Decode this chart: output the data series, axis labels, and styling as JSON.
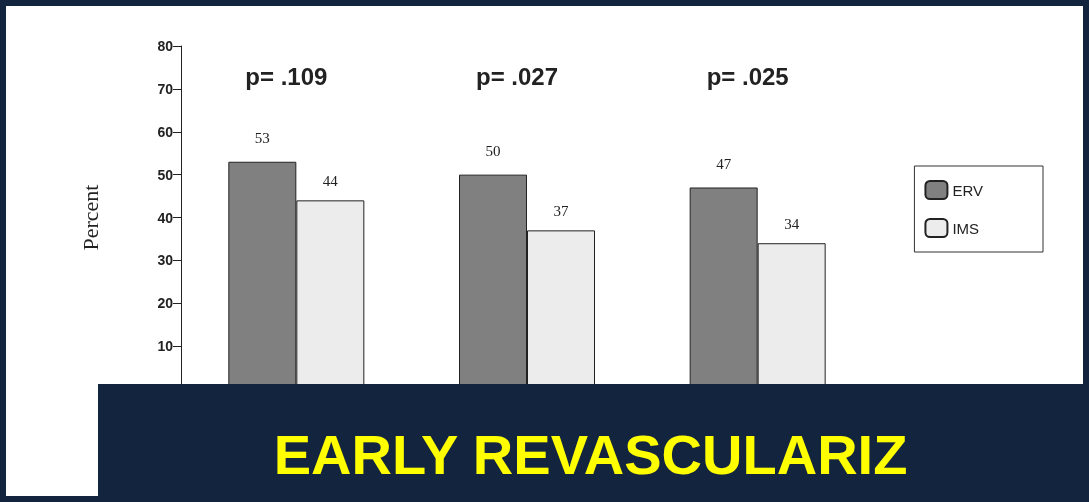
{
  "chart_data": {
    "type": "bar",
    "title": "EARLY REVASCULARIZ",
    "ylabel": "Percent",
    "categories": [
      null,
      null,
      null
    ],
    "series": [
      {
        "name": "ERV",
        "color": "#808080",
        "values": [
          53,
          50,
          47
        ]
      },
      {
        "name": "IMS",
        "color": "#ececec",
        "values": [
          44,
          37,
          34
        ]
      }
    ],
    "annotations": [
      "p= .109",
      "p= .027",
      "p= .025"
    ],
    "ylim": [
      0,
      80
    ],
    "yticks": [
      10,
      20,
      30,
      40,
      50,
      60,
      70,
      80
    ],
    "data_labels": true,
    "legend": "right",
    "grid": false
  }
}
